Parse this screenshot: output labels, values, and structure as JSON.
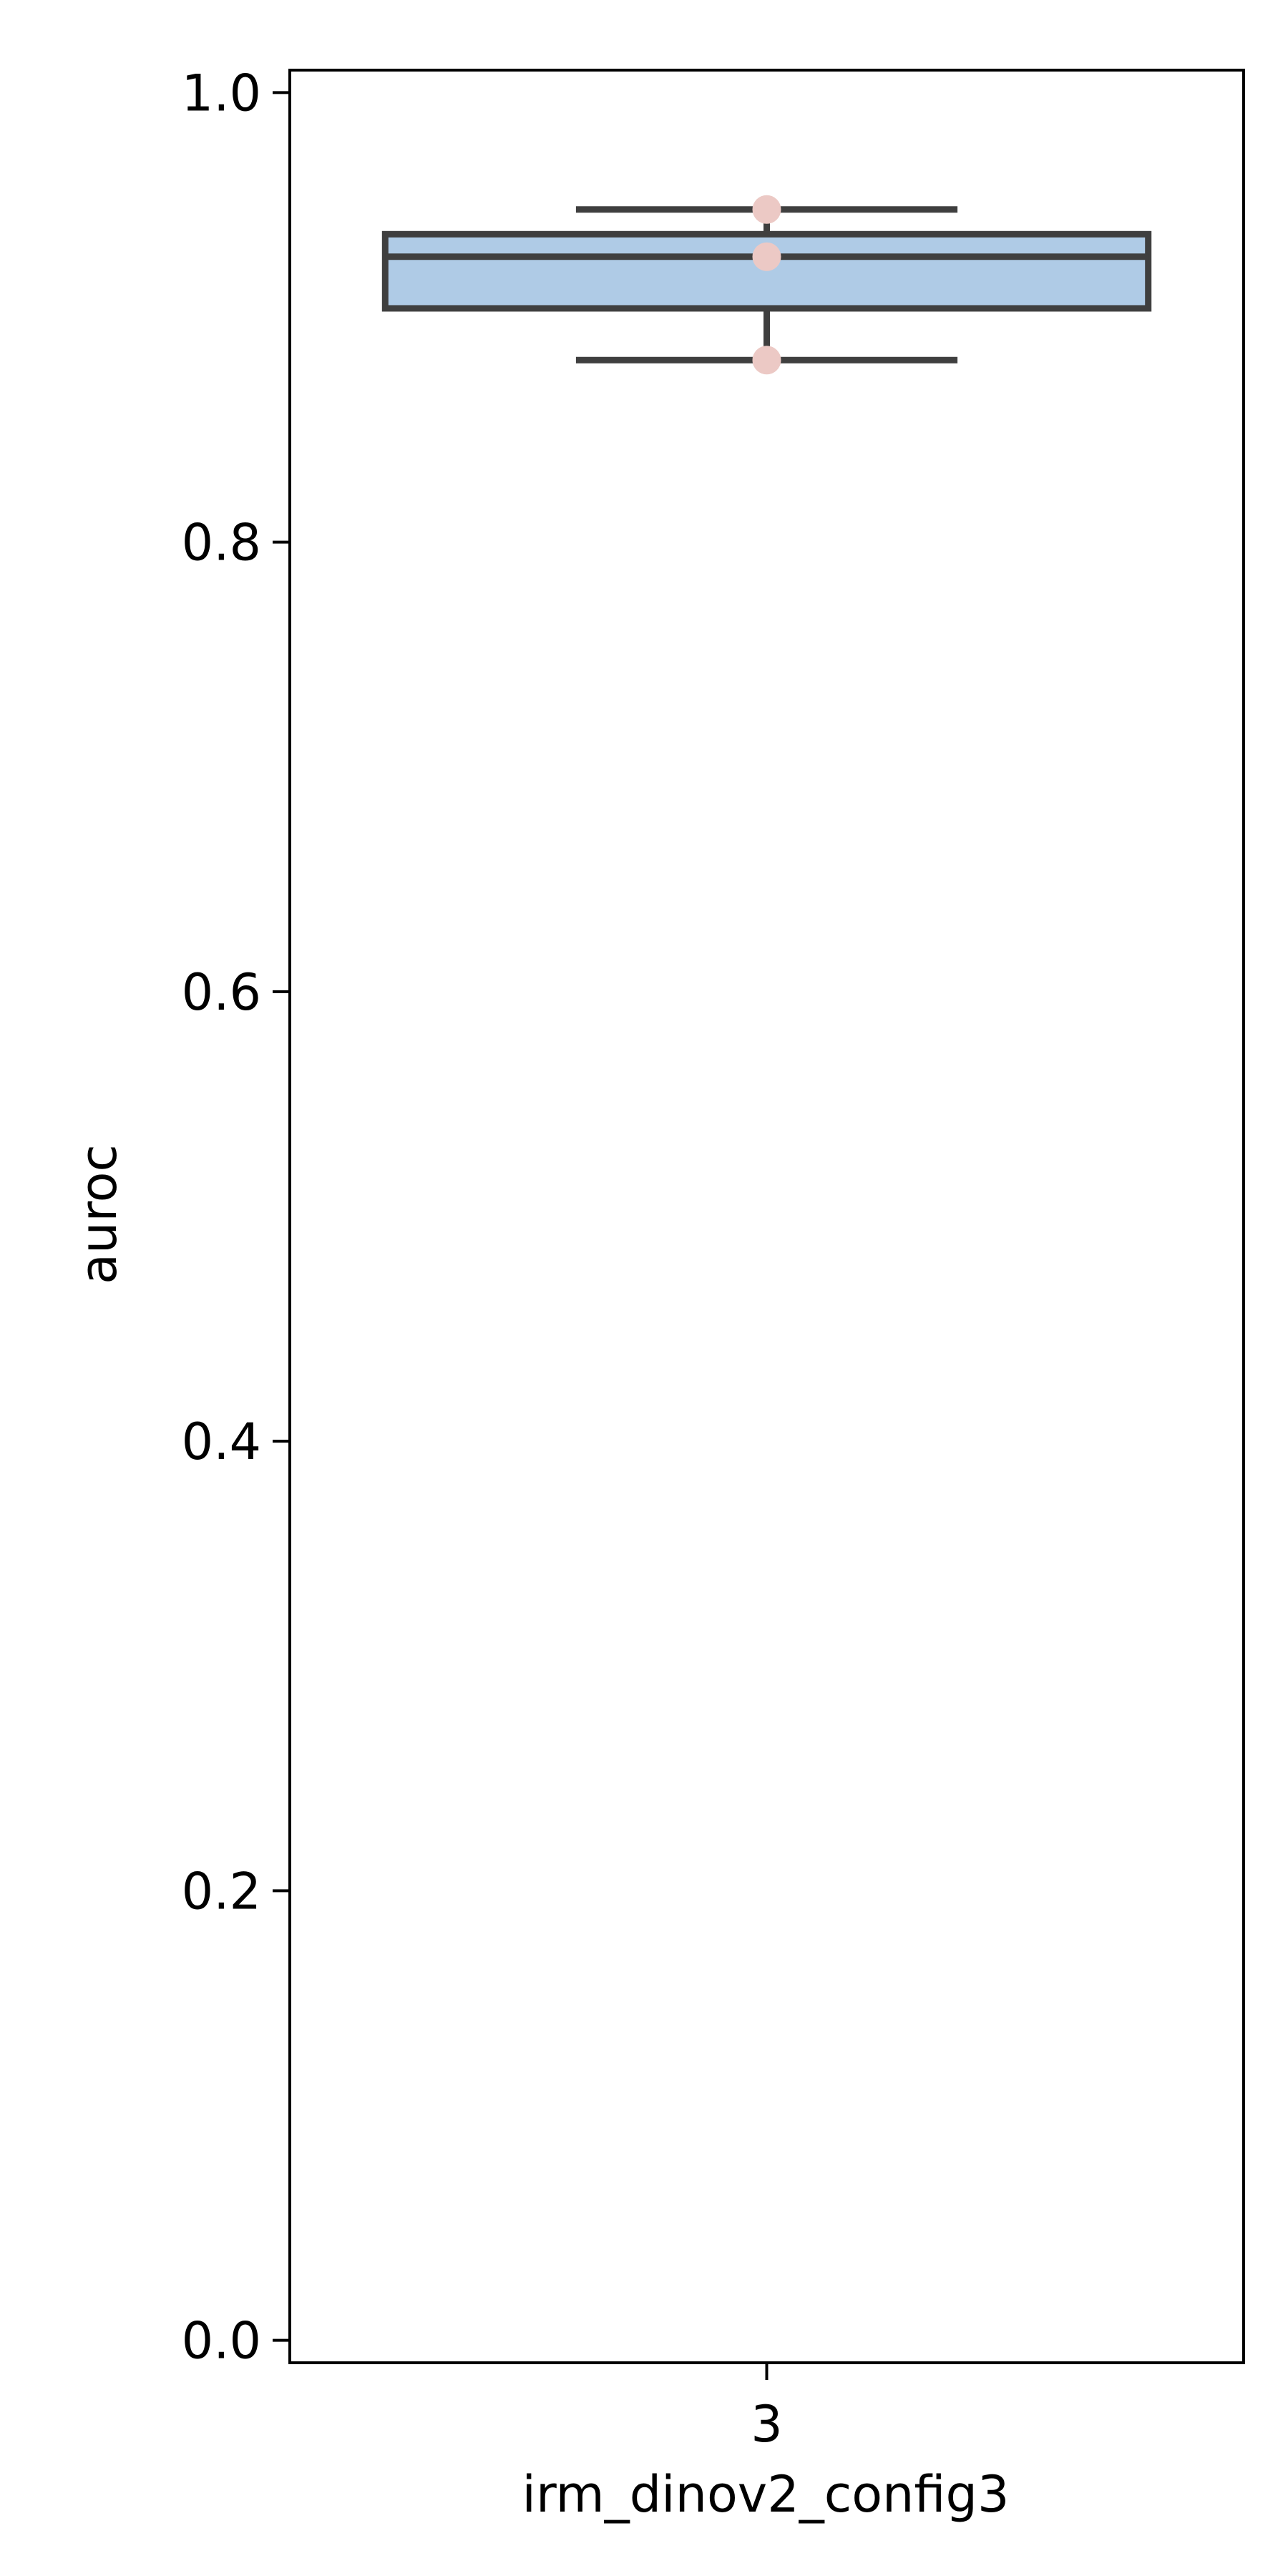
{
  "chart_data": {
    "type": "box",
    "title": "",
    "xlabel": "irm_dinov2_config3",
    "ylabel": "auroc",
    "ylim": [
      -0.01,
      1.01
    ],
    "yticks": [
      0.0,
      0.2,
      0.4,
      0.6,
      0.8,
      1.0
    ],
    "ytick_labels": [
      "0.0",
      "0.2",
      "0.4",
      "0.6",
      "0.8",
      "1.0"
    ],
    "categories": [
      "3"
    ],
    "boxes": [
      {
        "category": "3",
        "whisker_low": 0.881,
        "q1": 0.904,
        "median": 0.927,
        "q3": 0.937,
        "whisker_high": 0.948,
        "points": [
          0.948,
          0.927,
          0.881
        ]
      }
    ],
    "grid": false,
    "colors": {
      "box_fill": "#afcbe6",
      "box_edge": "#3f3f3f",
      "points": "#ecc9c5",
      "axes": "#000000"
    }
  }
}
